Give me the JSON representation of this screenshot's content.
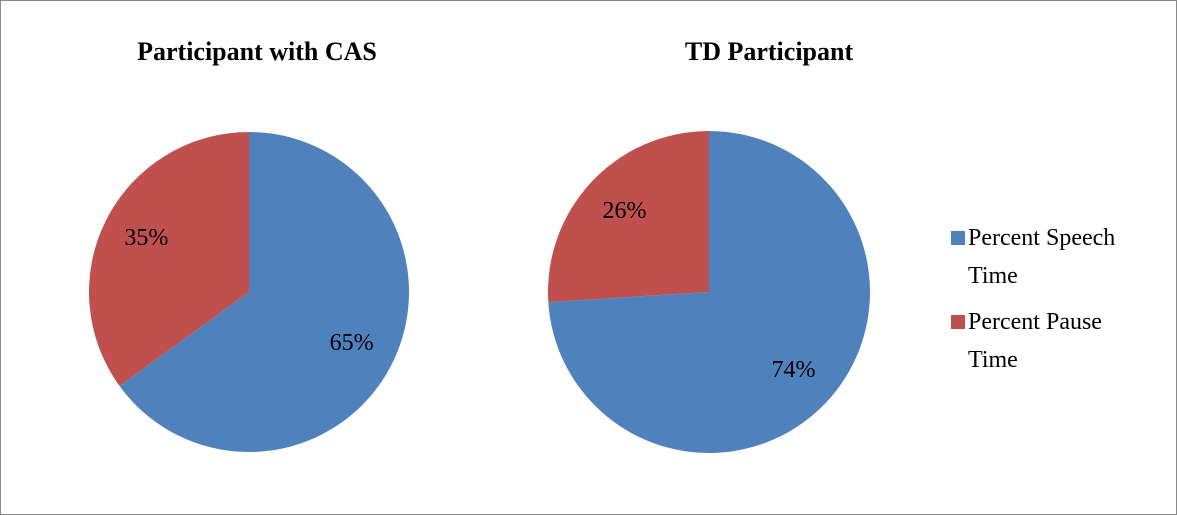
{
  "chart_data": [
    {
      "type": "pie",
      "title": "Participant with CAS",
      "values": [
        65,
        35
      ],
      "value_labels": [
        "65%",
        "35%"
      ],
      "colors": [
        "#4f81bd",
        "#c0504d"
      ]
    },
    {
      "type": "pie",
      "title": "TD Participant",
      "categories": [
        "Percent Speech Time",
        "Percent Pause Time"
      ],
      "values": [
        74,
        26
      ],
      "value_labels": [
        "74%",
        "26%"
      ],
      "colors": [
        "#4f81bd",
        "#c0504d"
      ],
      "legend": "right"
    }
  ]
}
